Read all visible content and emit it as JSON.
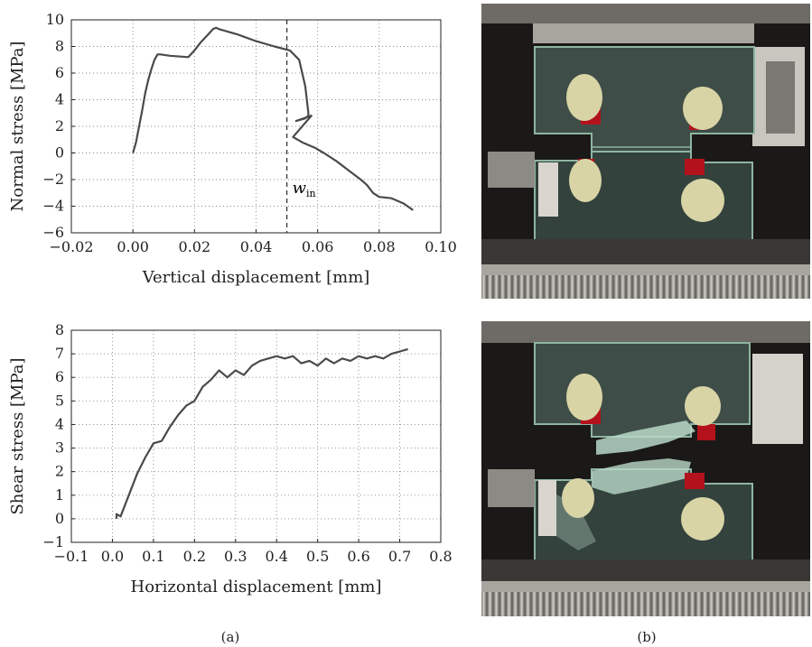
{
  "chart_data": [
    {
      "type": "line",
      "panel": "top",
      "xlabel": "Vertical displacement [mm]",
      "ylabel": "Normal stress [MPa]",
      "xlim": [
        -0.02,
        0.1
      ],
      "ylim": [
        -6,
        10
      ],
      "xticks": [
        "−0.02",
        "0.00",
        "0.02",
        "0.04",
        "0.06",
        "0.08",
        "0.10"
      ],
      "yticks": [
        "−6",
        "−4",
        "−2",
        "0",
        "2",
        "4",
        "6",
        "8",
        "10"
      ],
      "grid": true,
      "annotation": {
        "text_main": "w",
        "text_sub": "in",
        "x": 0.05
      },
      "series": [
        {
          "x": [
            0,
            0.001,
            0.002,
            0.003,
            0.004,
            0.005,
            0.006,
            0.007,
            0.008,
            0.009,
            0.012,
            0.018,
            0.02,
            0.022,
            0.024,
            0.026,
            0.027,
            0.028,
            0.034,
            0.04,
            0.046,
            0.051,
            0.054,
            0.056,
            0.057,
            0.057,
            0.056,
            0.053,
            0.058,
            0.052,
            0.055,
            0.059,
            0.062,
            0.066,
            0.07,
            0.074,
            0.076,
            0.078,
            0.08,
            0.084,
            0.088,
            0.091
          ],
          "y": [
            0.0,
            0.8,
            2.0,
            3.2,
            4.5,
            5.5,
            6.3,
            7.0,
            7.4,
            7.4,
            7.3,
            7.2,
            7.7,
            8.3,
            8.8,
            9.3,
            9.4,
            9.3,
            8.9,
            8.4,
            8.0,
            7.7,
            7.0,
            5.0,
            3.0,
            2.8,
            2.6,
            2.4,
            2.8,
            1.2,
            0.8,
            0.4,
            0.0,
            -0.6,
            -1.3,
            -2.0,
            -2.4,
            -3.0,
            -3.3,
            -3.4,
            -3.8,
            -4.3
          ]
        }
      ]
    },
    {
      "type": "line",
      "panel": "bottom",
      "xlabel": "Horizontal displacement [mm]",
      "ylabel": "Shear stress [MPa]",
      "xlim": [
        -0.1,
        0.8
      ],
      "ylim": [
        -1,
        8
      ],
      "xticks": [
        "−0.1",
        "0.0",
        "0.1",
        "0.2",
        "0.3",
        "0.4",
        "0.5",
        "0.6",
        "0.7",
        "0.8"
      ],
      "yticks": [
        "−1",
        "0",
        "1",
        "2",
        "3",
        "4",
        "5",
        "6",
        "7",
        "8"
      ],
      "grid": true,
      "series": [
        {
          "x": [
            0.01,
            0.01,
            0.02,
            0.04,
            0.06,
            0.08,
            0.1,
            0.12,
            0.14,
            0.16,
            0.18,
            0.2,
            0.22,
            0.24,
            0.26,
            0.28,
            0.3,
            0.32,
            0.34,
            0.36,
            0.38,
            0.4,
            0.42,
            0.44,
            0.46,
            0.48,
            0.5,
            0.52,
            0.54,
            0.56,
            0.58,
            0.6,
            0.62,
            0.64,
            0.66,
            0.68,
            0.7,
            0.72
          ],
          "y": [
            0.0,
            0.2,
            0.1,
            1.0,
            1.9,
            2.6,
            3.2,
            3.3,
            3.9,
            4.4,
            4.8,
            5.0,
            5.6,
            5.9,
            6.3,
            6.0,
            6.3,
            6.1,
            6.5,
            6.7,
            6.8,
            6.9,
            6.8,
            6.9,
            6.6,
            6.7,
            6.5,
            6.8,
            6.6,
            6.8,
            6.7,
            6.9,
            6.8,
            6.9,
            6.8,
            7.0,
            7.1,
            7.2
          ]
        }
      ]
    }
  ],
  "captions": {
    "a": "(a)",
    "b": "(b)"
  },
  "photo_colors": {
    "background": "#1a1917",
    "metal_top": "#8f8c87",
    "metal_light": "#c7c4bd",
    "specimen_glass": "#3e4d47",
    "glass_edge": "#8fb5a2",
    "clip_red": "#b3121c",
    "rubber_pad": "#d8d4a6",
    "fracture_glass": "#b9d8c8"
  }
}
